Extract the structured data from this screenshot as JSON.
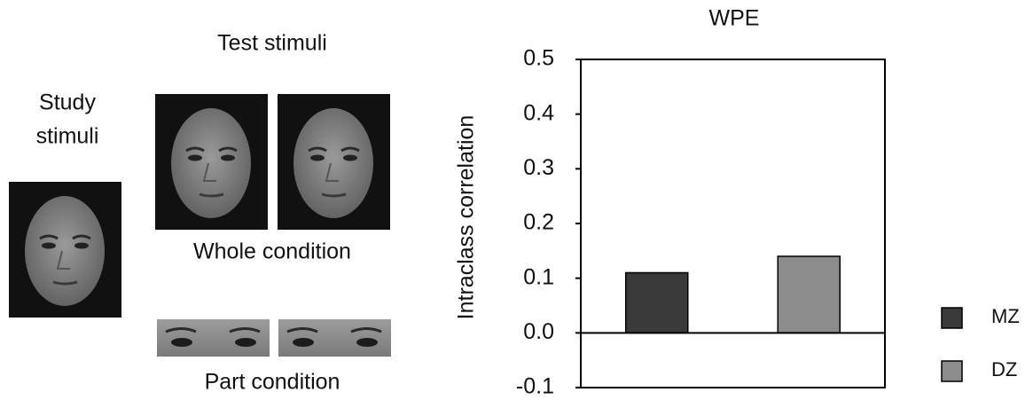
{
  "stimuli": {
    "study_label": [
      "Study",
      "stimuli"
    ],
    "test_label": "Test stimuli",
    "whole_label": "Whole condition",
    "part_label": "Part condition"
  },
  "chart_data": {
    "type": "bar",
    "title": "WPE",
    "ylabel": "Intraclass correlation",
    "categories": [
      null
    ],
    "series": [
      {
        "name": "MZ",
        "color": "#3a3a3a",
        "values": [
          0.11
        ]
      },
      {
        "name": "DZ",
        "color": "#8c8c8c",
        "values": [
          0.14
        ]
      }
    ],
    "ylim": [
      -0.1,
      0.5
    ],
    "yticks": [
      -0.1,
      {
        "value": 0,
        "label": "0.0"
      },
      0.1,
      0.2,
      0.3,
      0.4,
      0.5
    ],
    "legend": "right"
  }
}
